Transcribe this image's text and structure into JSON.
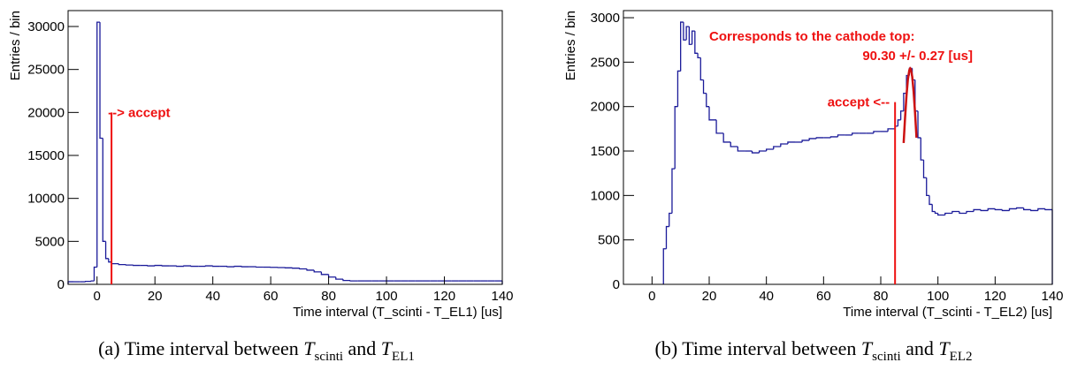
{
  "chart_data": [
    {
      "type": "histogram",
      "ylabel": "Entries / bin",
      "xlabel": "Time interval (T_scinti - T_EL1) [us]",
      "color": "#1a1a99",
      "bins": [
        -10,
        -8,
        -6,
        -4,
        -2,
        -1,
        0,
        1,
        2,
        3,
        4,
        5,
        7.5,
        10,
        12.5,
        15,
        17.5,
        20,
        22.5,
        25,
        27.5,
        30,
        32.5,
        35,
        37.5,
        40,
        42.5,
        45,
        47.5,
        50,
        52.5,
        55,
        57.5,
        60,
        62.5,
        65,
        67.5,
        70,
        72.5,
        75,
        77.5,
        80,
        82.5,
        85,
        87.5,
        90,
        92.5,
        95,
        97.5,
        100,
        102.5,
        105,
        107.5,
        110,
        112.5,
        115,
        117.5,
        120,
        122.5,
        125,
        127.5,
        130,
        132.5,
        135,
        137.5,
        140
      ],
      "values": [
        300,
        300,
        300,
        350,
        400,
        2000,
        30500,
        17000,
        5000,
        3000,
        2600,
        2400,
        2300,
        2250,
        2200,
        2200,
        2150,
        2200,
        2150,
        2150,
        2100,
        2150,
        2100,
        2100,
        2150,
        2100,
        2100,
        2050,
        2100,
        2050,
        2050,
        2000,
        2000,
        1980,
        1950,
        1920,
        1880,
        1800,
        1650,
        1450,
        1150,
        850,
        600,
        450,
        400,
        400,
        400,
        400,
        400,
        400,
        400,
        400,
        400,
        400,
        400,
        400,
        400,
        400,
        400,
        400,
        400,
        400,
        400,
        400,
        400
      ],
      "xlim": [
        -10,
        140
      ],
      "xticks": [
        0,
        20,
        40,
        60,
        80,
        100,
        120,
        140
      ],
      "ylim": [
        0,
        31850
      ],
      "yticks": [
        0,
        5000,
        10000,
        15000,
        20000,
        25000,
        30000
      ],
      "cut": {
        "x": 5,
        "y": 20000,
        "label": "--> accept",
        "side": "right",
        "color": "#ee1111"
      },
      "caption": {
        "prefix": "(a) Time interval between ",
        "var1": "T",
        "sub1": "scinti",
        "mid": " and ",
        "var2": "T",
        "sub2": "EL1"
      }
    },
    {
      "type": "histogram",
      "ylabel": "Entries / bin",
      "xlabel": "Time interval (T_scinti - T_EL2) [us]",
      "color": "#1a1a99",
      "bins": [
        4,
        5,
        6,
        7,
        8,
        9,
        10,
        11,
        12,
        13,
        14,
        15,
        16,
        17,
        18,
        19,
        20,
        22.5,
        25,
        27.5,
        30,
        32.5,
        35,
        37.5,
        40,
        42.5,
        45,
        47.5,
        50,
        52.5,
        55,
        57.5,
        60,
        62.5,
        65,
        67.5,
        70,
        72.5,
        75,
        77.5,
        80,
        82.5,
        85,
        86,
        87,
        88,
        89,
        90,
        91,
        92,
        93,
        94,
        95,
        96,
        97,
        98,
        99,
        100,
        102.5,
        105,
        107.5,
        110,
        112.5,
        115,
        117.5,
        120,
        122.5,
        125,
        127.5,
        130,
        132.5,
        135,
        137.5,
        140
      ],
      "values": [
        400,
        650,
        800,
        1300,
        2000,
        2400,
        2950,
        2750,
        2900,
        2700,
        2850,
        2600,
        2550,
        2300,
        2150,
        2000,
        1850,
        1700,
        1600,
        1550,
        1500,
        1500,
        1480,
        1500,
        1520,
        1550,
        1580,
        1600,
        1600,
        1620,
        1640,
        1650,
        1650,
        1660,
        1680,
        1680,
        1700,
        1700,
        1700,
        1720,
        1720,
        1750,
        1780,
        1850,
        1950,
        2150,
        2350,
        2430,
        2300,
        1950,
        1650,
        1400,
        1200,
        1000,
        900,
        820,
        800,
        780,
        800,
        820,
        800,
        820,
        840,
        830,
        850,
        840,
        830,
        850,
        860,
        840,
        830,
        850,
        840
      ],
      "xlim": [
        -10,
        140
      ],
      "xticks": [
        0,
        20,
        40,
        60,
        80,
        100,
        120,
        140
      ],
      "ylim": [
        0,
        3080
      ],
      "yticks": [
        0,
        500,
        1000,
        1500,
        2000,
        2500,
        3000
      ],
      "cut": {
        "x": 85,
        "y": 2050,
        "label": "accept <--",
        "side": "left",
        "color": "#ee1111"
      },
      "fit": {
        "x": [
          88,
          88.5,
          89,
          89.5,
          90,
          90.3,
          90.5,
          91,
          91.5,
          92,
          92.5
        ],
        "values": [
          1590,
          1876,
          2123,
          2308,
          2412,
          2430,
          2423,
          2337,
          2165,
          1927,
          1650
        ],
        "color": "#cc1111"
      },
      "annotations": [
        "Corresponds to the cathode top:",
        "90.30 +/- 0.27 [us]"
      ],
      "caption": {
        "prefix": "(b) Time interval between ",
        "var1": "T",
        "sub1": "scinti",
        "mid": " and ",
        "var2": "T",
        "sub2": "EL2"
      }
    }
  ]
}
